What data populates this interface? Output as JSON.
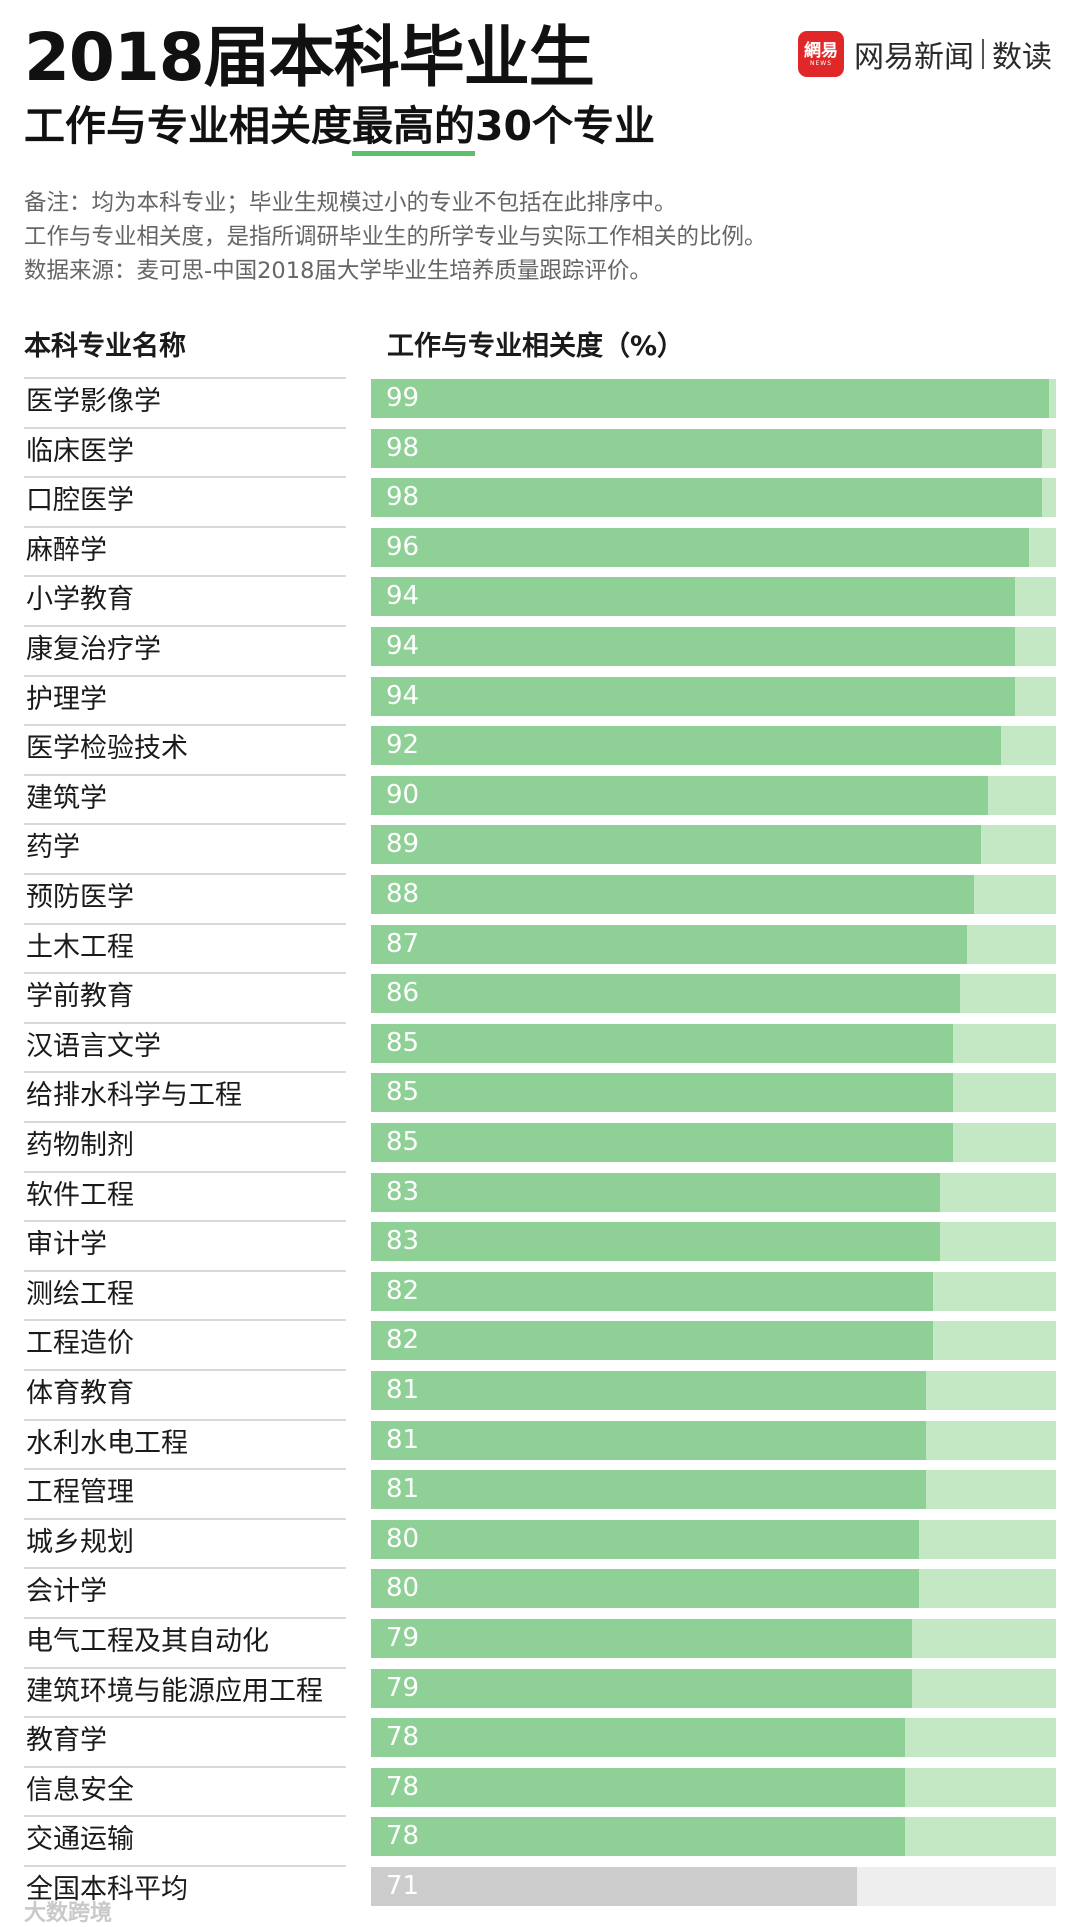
{
  "header": {
    "title": "2018届本科毕业生",
    "subtitle_prefix": "工作与专业相关度",
    "subtitle_highlight": "最高的",
    "subtitle_suffix": "30个专业"
  },
  "logo": {
    "badge": "網易",
    "badge_small": "NEWS",
    "name": "网易新闻",
    "tag": "数读",
    "badge_color": "#e02828"
  },
  "notes": [
    "备注：均为本科专业；毕业生规模过小的专业不包括在此排序中。",
    "工作与专业相关度，是指所调研毕业生的所学专业与实际工作相关的比例。",
    "数据来源：麦可思-中国2018届大学毕业生培养质量跟踪评价。"
  ],
  "watermark": "大数跨境",
  "chart_data": {
    "type": "bar",
    "orientation": "horizontal",
    "column_headers": [
      "本科专业名称",
      "工作与专业相关度（%）"
    ],
    "xlim": [
      0,
      100
    ],
    "grid": false,
    "categories": [
      "医学影像学",
      "临床医学",
      "口腔医学",
      "麻醉学",
      "小学教育",
      "康复治疗学",
      "护理学",
      "医学检验技术",
      "建筑学",
      "药学",
      "预防医学",
      "土木工程",
      "学前教育",
      "汉语言文学",
      "给排水科学与工程",
      "药物制剂",
      "软件工程",
      "审计学",
      "测绘工程",
      "工程造价",
      "体育教育",
      "水利水电工程",
      "工程管理",
      "城乡规划",
      "会计学",
      "电气工程及其自动化",
      "建筑环境与能源应用工程",
      "教育学",
      "信息安全",
      "交通运输",
      "全国本科平均"
    ],
    "values": [
      99,
      98,
      98,
      96,
      94,
      94,
      94,
      92,
      90,
      89,
      88,
      87,
      86,
      85,
      85,
      85,
      83,
      83,
      82,
      82,
      81,
      81,
      81,
      80,
      80,
      79,
      79,
      78,
      78,
      78,
      71
    ],
    "colors": {
      "bar": "#8fd096",
      "track": "#c3e8c3",
      "average_bar": "#cccccc",
      "average_track": "#eeeeee",
      "highlight_underline": "#5cbf6c"
    }
  }
}
